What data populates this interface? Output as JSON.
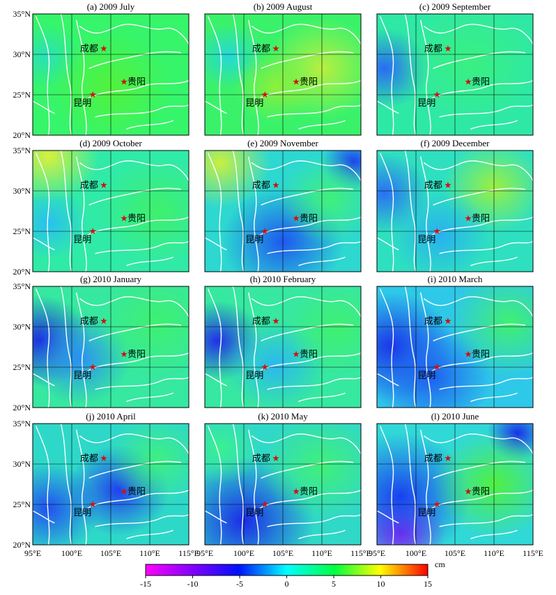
{
  "panels": [
    {
      "title": "(a) 2009 July"
    },
    {
      "title": "(b) 2009 August"
    },
    {
      "title": "(c) 2009 September"
    },
    {
      "title": "(d) 2009 October"
    },
    {
      "title": "(e) 2009 November"
    },
    {
      "title": "(f) 2009 December"
    },
    {
      "title": "(g) 2010 January"
    },
    {
      "title": "(h) 2010 February"
    },
    {
      "title": "(i) 2010 March"
    },
    {
      "title": "(j) 2010 April"
    },
    {
      "title": "(k) 2010 May"
    },
    {
      "title": "(l) 2010 June"
    }
  ],
  "lat_ticks": [
    "35°N",
    "30°N",
    "25°N",
    "20°N"
  ],
  "lon_ticks": [
    "95°E",
    "100°E",
    "105°E",
    "110°E",
    "115°E"
  ],
  "cities": [
    {
      "name": "成都",
      "lon": 104.1,
      "lat": 30.7
    },
    {
      "name": "贵阳",
      "lon": 106.7,
      "lat": 26.6
    },
    {
      "name": "昆明",
      "lon": 102.7,
      "lat": 25.0
    }
  ],
  "colorbar": {
    "unit": "cm",
    "ticks": [
      "-15",
      "-10",
      "-5",
      "0",
      "5",
      "10",
      "15"
    ],
    "min": -15,
    "max": 15
  },
  "map_extent": {
    "lon": [
      95,
      115
    ],
    "lat": [
      20,
      35
    ]
  },
  "colors": {
    "star": "#d01010",
    "boundary": "#ffffff",
    "grid": "#000000"
  }
}
